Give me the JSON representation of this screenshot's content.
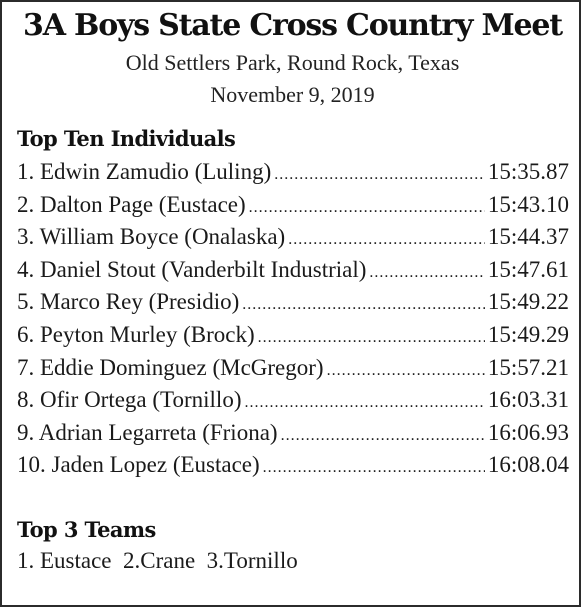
{
  "header": {
    "title": "3A Boys State Cross Country Meet",
    "location": "Old Settlers Park, Round Rock, Texas",
    "date": "November 9, 2019"
  },
  "individuals": {
    "heading": "Top Ten Individuals",
    "entries": [
      {
        "name": "1. Edwin Zamudio (Luling)",
        "time": "15:35.87"
      },
      {
        "name": "2. Dalton Page (Eustace)",
        "time": "15:43.10"
      },
      {
        "name": "3. William Boyce (Onalaska)",
        "time": "15:44.37"
      },
      {
        "name": "4. Daniel Stout (Vanderbilt Industrial)",
        "time": "15:47.61"
      },
      {
        "name": "5. Marco Rey (Presidio)",
        "time": "15:49.22"
      },
      {
        "name": "6. Peyton Murley (Brock)",
        "time": "15:49.29"
      },
      {
        "name": "7. Eddie Dominguez (McGregor)",
        "time": "15:57.21"
      },
      {
        "name": "8. Ofir Ortega (Tornillo)",
        "time": "16:03.31"
      },
      {
        "name": "9. Adrian Legarreta (Friona)",
        "time": "16:06.93"
      },
      {
        "name": "10. Jaden Lopez (Eustace)",
        "time": "16:08.04"
      }
    ]
  },
  "teams": {
    "heading": "Top 3 Teams",
    "line": "1. Eustace  2.Crane  3.Tornillo"
  }
}
